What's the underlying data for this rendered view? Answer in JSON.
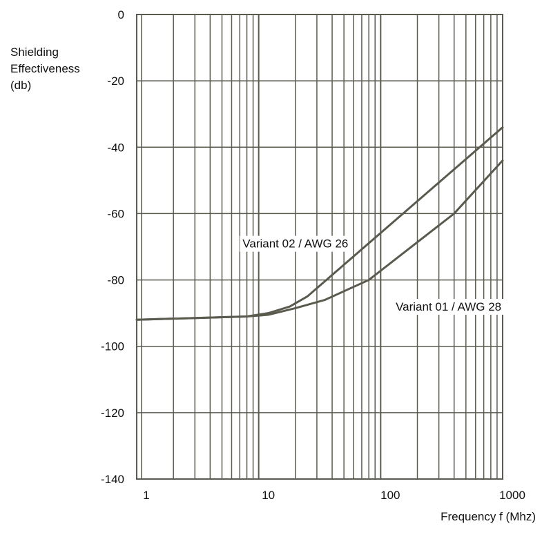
{
  "chart_data": {
    "type": "line",
    "ylabel": [
      "Shielding",
      "Effectiveness",
      "(db)"
    ],
    "xlabel": "Frequency f (Mhz)",
    "x_scale": "log",
    "xlim": [
      1,
      1000
    ],
    "ylim": [
      -140,
      0
    ],
    "x_ticks": [
      {
        "value": 1,
        "label": "1"
      },
      {
        "value": 10,
        "label": "10"
      },
      {
        "value": 100,
        "label": "100"
      },
      {
        "value": 1000,
        "label": "1000"
      }
    ],
    "y_ticks": [
      {
        "value": 0,
        "label": "0"
      },
      {
        "value": -20,
        "label": "-20"
      },
      {
        "value": -40,
        "label": "-40"
      },
      {
        "value": -60,
        "label": "-60"
      },
      {
        "value": -80,
        "label": "-80"
      },
      {
        "value": -100,
        "label": "-100"
      },
      {
        "value": -120,
        "label": "-120"
      },
      {
        "value": -140,
        "label": "-140"
      }
    ],
    "grid": true,
    "line_color": "#5a5a4e",
    "grid_color": "#5a5a4e",
    "series": [
      {
        "name": "Variant 02 / AWG 26",
        "x": [
          1,
          8,
          12,
          18,
          25,
          1000
        ],
        "y": [
          -92,
          -91,
          -90,
          -88,
          -85,
          -34
        ]
      },
      {
        "name": "Variant 01 / AWG 28",
        "x": [
          1,
          8,
          12,
          20,
          35,
          80,
          400,
          1000
        ],
        "y": [
          -92,
          -91,
          -90.5,
          -88.5,
          -86,
          -80,
          -60,
          -44
        ]
      }
    ],
    "annotations": [
      {
        "text": "Variant 02 / AWG 26",
        "x": 20,
        "y": -69
      },
      {
        "text": "Variant 01 / AWG 28",
        "x": 360,
        "y": -88
      }
    ]
  }
}
